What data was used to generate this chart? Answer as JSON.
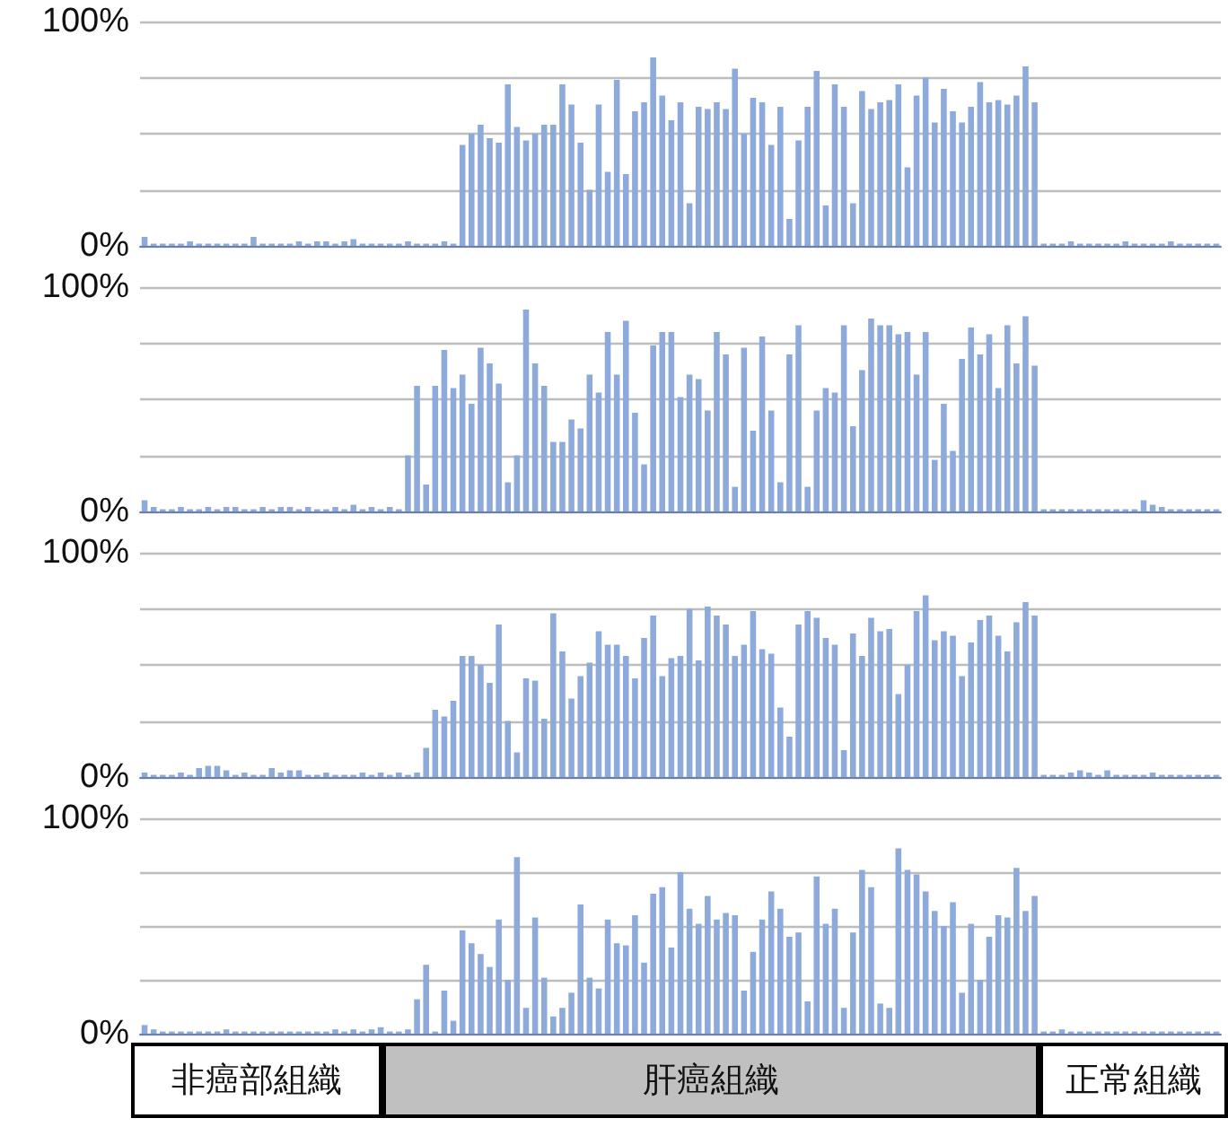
{
  "chart_data": [
    {
      "type": "bar",
      "color": "#8eaadb",
      "ylim": [
        0,
        100
      ],
      "yticks": [
        {
          "value": 0,
          "label": "0%"
        },
        {
          "value": 25,
          "label": null
        },
        {
          "value": 50,
          "label": null
        },
        {
          "value": 75,
          "label": null
        },
        {
          "value": 100,
          "label": "100%"
        }
      ],
      "grid": "y",
      "categories": [
        null,
        null,
        null,
        null,
        null,
        null,
        null,
        null,
        null,
        null,
        null,
        null,
        null,
        null,
        null,
        null,
        null,
        null,
        null,
        null,
        null,
        null,
        null,
        null,
        null,
        null,
        null,
        null,
        null,
        null,
        null,
        null,
        null,
        null,
        null,
        null,
        null,
        null,
        null,
        null,
        null,
        null,
        null,
        null,
        null,
        null,
        null,
        null,
        null,
        null,
        null,
        null,
        null,
        null,
        null,
        null,
        null,
        null,
        null,
        null,
        null,
        null,
        null,
        null,
        null,
        null,
        null,
        null,
        null,
        null,
        null,
        null,
        null,
        null,
        null,
        null,
        null,
        null,
        null,
        null,
        null,
        null,
        null,
        null,
        null,
        null,
        null,
        null,
        null,
        null,
        null,
        null,
        null,
        null,
        null,
        null,
        null,
        null,
        null,
        null,
        null,
        null,
        null,
        null,
        null,
        null,
        null,
        null,
        null,
        null,
        null,
        null,
        null,
        null,
        null,
        null,
        null,
        null,
        null
      ],
      "values": [
        4,
        1,
        1,
        1,
        1,
        2,
        1,
        1,
        1,
        1,
        1,
        1,
        4,
        1,
        1,
        1,
        1,
        2,
        1,
        2,
        2,
        1,
        2,
        3,
        1,
        1,
        1,
        1,
        1,
        2,
        1,
        1,
        1,
        2,
        1,
        45,
        50,
        54,
        48,
        46,
        72,
        53,
        47,
        50,
        54,
        54,
        72,
        63,
        46,
        25,
        63,
        33,
        74,
        32,
        60,
        64,
        84,
        67,
        56,
        64,
        19,
        62,
        61,
        64,
        61,
        79,
        50,
        66,
        64,
        45,
        62,
        12,
        47,
        62,
        78,
        18,
        72,
        62,
        19,
        69,
        61,
        64,
        65,
        72,
        35,
        67,
        75,
        55,
        70,
        60,
        55,
        62,
        73,
        64,
        65,
        63,
        67,
        80,
        64,
        1,
        1,
        1,
        2,
        1,
        1,
        1,
        1,
        1,
        2,
        1,
        1,
        1,
        1,
        2,
        1,
        1,
        1,
        1,
        1
      ]
    },
    {
      "type": "bar",
      "color": "#8eaadb",
      "ylim": [
        0,
        100
      ],
      "yticks": [
        {
          "value": 0,
          "label": "0%"
        },
        {
          "value": 25,
          "label": null
        },
        {
          "value": 50,
          "label": null
        },
        {
          "value": 75,
          "label": null
        },
        {
          "value": 100,
          "label": "100%"
        }
      ],
      "grid": "y",
      "categories": [
        null,
        null,
        null,
        null,
        null,
        null,
        null,
        null,
        null,
        null,
        null,
        null,
        null,
        null,
        null,
        null,
        null,
        null,
        null,
        null,
        null,
        null,
        null,
        null,
        null,
        null,
        null,
        null,
        null,
        null,
        null,
        null,
        null,
        null,
        null,
        null,
        null,
        null,
        null,
        null,
        null,
        null,
        null,
        null,
        null,
        null,
        null,
        null,
        null,
        null,
        null,
        null,
        null,
        null,
        null,
        null,
        null,
        null,
        null,
        null,
        null,
        null,
        null,
        null,
        null,
        null,
        null,
        null,
        null,
        null,
        null,
        null,
        null,
        null,
        null,
        null,
        null,
        null,
        null,
        null,
        null,
        null,
        null,
        null,
        null,
        null,
        null,
        null,
        null,
        null,
        null,
        null,
        null,
        null,
        null,
        null,
        null,
        null,
        null,
        null,
        null,
        null,
        null,
        null,
        null,
        null,
        null,
        null,
        null,
        null,
        null,
        null,
        null,
        null,
        null,
        null,
        null,
        null,
        null
      ],
      "values": [
        5,
        2,
        1,
        1,
        2,
        1,
        1,
        2,
        1,
        2,
        2,
        1,
        1,
        2,
        1,
        2,
        2,
        1,
        2,
        1,
        1,
        2,
        1,
        3,
        1,
        2,
        1,
        2,
        1,
        25,
        56,
        12,
        56,
        72,
        55,
        61,
        48,
        73,
        66,
        57,
        13,
        25,
        90,
        66,
        56,
        31,
        31,
        41,
        37,
        61,
        53,
        80,
        61,
        85,
        44,
        21,
        74,
        80,
        80,
        51,
        61,
        59,
        45,
        80,
        70,
        11,
        73,
        36,
        78,
        45,
        13,
        70,
        83,
        11,
        45,
        55,
        53,
        83,
        38,
        63,
        86,
        83,
        83,
        79,
        80,
        61,
        80,
        23,
        48,
        27,
        68,
        82,
        70,
        79,
        55,
        83,
        66,
        87,
        65,
        1,
        1,
        1,
        1,
        1,
        1,
        1,
        1,
        1,
        1,
        1,
        5,
        3,
        2,
        1,
        1,
        1,
        1,
        1,
        1
      ]
    },
    {
      "type": "bar",
      "color": "#8eaadb",
      "ylim": [
        0,
        100
      ],
      "yticks": [
        {
          "value": 0,
          "label": "0%"
        },
        {
          "value": 25,
          "label": null
        },
        {
          "value": 50,
          "label": null
        },
        {
          "value": 75,
          "label": null
        },
        {
          "value": 100,
          "label": "100%"
        }
      ],
      "grid": "y",
      "categories": [
        null,
        null,
        null,
        null,
        null,
        null,
        null,
        null,
        null,
        null,
        null,
        null,
        null,
        null,
        null,
        null,
        null,
        null,
        null,
        null,
        null,
        null,
        null,
        null,
        null,
        null,
        null,
        null,
        null,
        null,
        null,
        null,
        null,
        null,
        null,
        null,
        null,
        null,
        null,
        null,
        null,
        null,
        null,
        null,
        null,
        null,
        null,
        null,
        null,
        null,
        null,
        null,
        null,
        null,
        null,
        null,
        null,
        null,
        null,
        null,
        null,
        null,
        null,
        null,
        null,
        null,
        null,
        null,
        null,
        null,
        null,
        null,
        null,
        null,
        null,
        null,
        null,
        null,
        null,
        null,
        null,
        null,
        null,
        null,
        null,
        null,
        null,
        null,
        null,
        null,
        null,
        null,
        null,
        null,
        null,
        null,
        null,
        null,
        null,
        null,
        null,
        null,
        null,
        null,
        null,
        null,
        null,
        null,
        null,
        null,
        null,
        null,
        null,
        null,
        null,
        null,
        null,
        null,
        null
      ],
      "values": [
        2,
        1,
        1,
        1,
        2,
        1,
        4,
        5,
        5,
        3,
        1,
        2,
        1,
        1,
        4,
        2,
        3,
        3,
        1,
        1,
        2,
        1,
        1,
        1,
        2,
        1,
        2,
        1,
        2,
        1,
        2,
        13,
        30,
        27,
        34,
        54,
        54,
        50,
        42,
        68,
        25,
        11,
        44,
        43,
        26,
        73,
        56,
        35,
        45,
        51,
        65,
        59,
        59,
        54,
        44,
        62,
        72,
        45,
        53,
        54,
        75,
        52,
        76,
        72,
        68,
        54,
        59,
        74,
        57,
        55,
        31,
        18,
        68,
        74,
        71,
        62,
        59,
        12,
        64,
        54,
        71,
        65,
        66,
        37,
        50,
        74,
        81,
        61,
        65,
        63,
        45,
        60,
        70,
        72,
        63,
        56,
        69,
        78,
        72,
        1,
        1,
        1,
        2,
        3,
        2,
        1,
        3,
        1,
        1,
        1,
        1,
        2,
        1,
        1,
        1,
        1,
        1,
        1,
        1
      ]
    },
    {
      "type": "bar",
      "color": "#8eaadb",
      "ylim": [
        0,
        100
      ],
      "yticks": [
        {
          "value": 0,
          "label": "0%"
        },
        {
          "value": 25,
          "label": null
        },
        {
          "value": 50,
          "label": null
        },
        {
          "value": 75,
          "label": null
        },
        {
          "value": 100,
          "label": "100%"
        }
      ],
      "grid": "y",
      "categories": [
        null,
        null,
        null,
        null,
        null,
        null,
        null,
        null,
        null,
        null,
        null,
        null,
        null,
        null,
        null,
        null,
        null,
        null,
        null,
        null,
        null,
        null,
        null,
        null,
        null,
        null,
        null,
        null,
        null,
        null,
        null,
        null,
        null,
        null,
        null,
        null,
        null,
        null,
        null,
        null,
        null,
        null,
        null,
        null,
        null,
        null,
        null,
        null,
        null,
        null,
        null,
        null,
        null,
        null,
        null,
        null,
        null,
        null,
        null,
        null,
        null,
        null,
        null,
        null,
        null,
        null,
        null,
        null,
        null,
        null,
        null,
        null,
        null,
        null,
        null,
        null,
        null,
        null,
        null,
        null,
        null,
        null,
        null,
        null,
        null,
        null,
        null,
        null,
        null,
        null,
        null,
        null,
        null,
        null,
        null,
        null,
        null,
        null,
        null,
        null,
        null,
        null,
        null,
        null,
        null,
        null,
        null,
        null,
        null,
        null,
        null,
        null,
        null,
        null,
        null,
        null,
        null,
        null,
        null
      ],
      "values": [
        4,
        2,
        1,
        1,
        1,
        1,
        1,
        1,
        1,
        2,
        1,
        1,
        1,
        1,
        1,
        1,
        1,
        1,
        1,
        1,
        1,
        2,
        1,
        2,
        1,
        2,
        3,
        1,
        1,
        2,
        16,
        32,
        1,
        20,
        6,
        48,
        42,
        37,
        31,
        53,
        25,
        82,
        12,
        54,
        26,
        8,
        12,
        19,
        60,
        26,
        21,
        53,
        42,
        41,
        55,
        33,
        65,
        68,
        40,
        75,
        58,
        51,
        64,
        53,
        56,
        55,
        20,
        38,
        53,
        66,
        58,
        45,
        47,
        15,
        73,
        51,
        58,
        12,
        47,
        76,
        68,
        14,
        12,
        86,
        76,
        74,
        66,
        57,
        50,
        61,
        19,
        51,
        25,
        45,
        55,
        54,
        77,
        57,
        64,
        1,
        1,
        2,
        1,
        1,
        1,
        1,
        1,
        1,
        1,
        1,
        1,
        1,
        1,
        1,
        1,
        1,
        1,
        1,
        1
      ],
      "annotations": [
        "非癌部組織",
        "肝癌組織",
        "正常組織"
      ]
    }
  ]
}
